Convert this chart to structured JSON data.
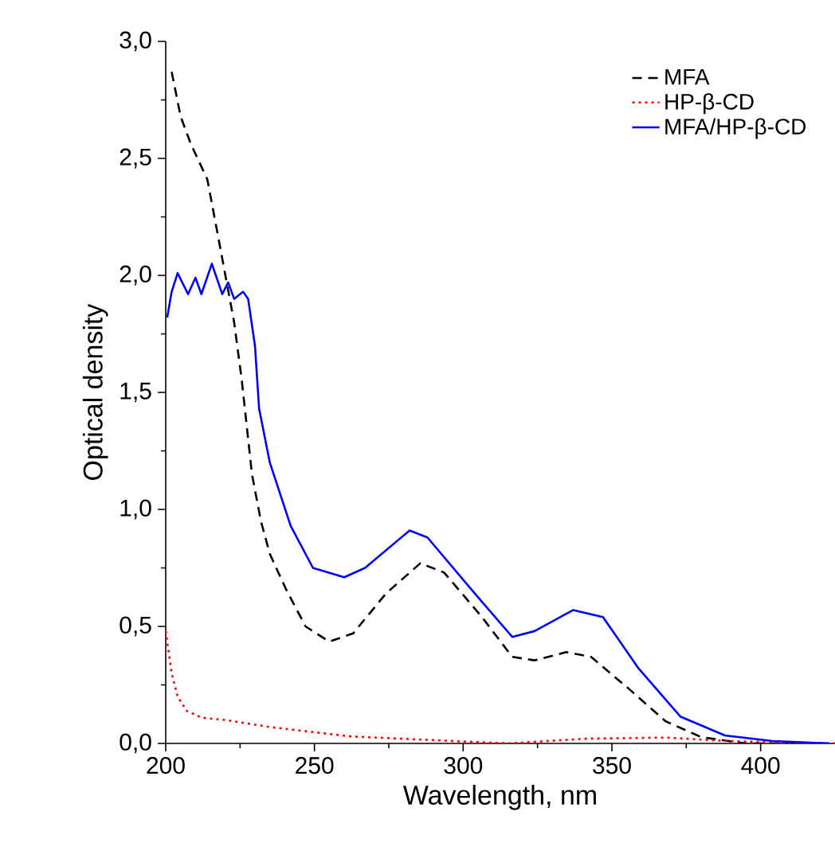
{
  "chart_data": {
    "type": "line",
    "xlabel": "Wavelength, nm",
    "ylabel": "Optical density",
    "xlim": [
      200,
      425
    ],
    "ylim": [
      0,
      3.0
    ],
    "xticks": [
      200,
      250,
      300,
      350,
      400
    ],
    "yticks": [
      {
        "value": 0,
        "label": "0,0"
      },
      {
        "value": 0.5,
        "label": "0,5"
      },
      {
        "value": 1.0,
        "label": "1,0"
      },
      {
        "value": 1.5,
        "label": "1,5"
      },
      {
        "value": 2.0,
        "label": "2,0"
      },
      {
        "value": 2.5,
        "label": "2,5"
      },
      {
        "value": 3.0,
        "label": "3,0"
      }
    ],
    "grid": false,
    "legend": "top right",
    "marker": "none",
    "series": [
      {
        "name": "MFA",
        "color": "#000000",
        "line_style": "dashed",
        "x": [
          202,
          205,
          208.5,
          214,
          218,
          223,
          225.5,
          229,
          232,
          235,
          240.4,
          247,
          255,
          263,
          274,
          285.6,
          293.6,
          306,
          316.5,
          324,
          334.6,
          343,
          356,
          368,
          380,
          395,
          425
        ],
        "values": [
          2.87,
          2.68,
          2.56,
          2.41,
          2.14,
          1.8,
          1.56,
          1.15,
          0.95,
          0.81,
          0.66,
          0.5,
          0.435,
          0.47,
          0.64,
          0.77,
          0.73,
          0.545,
          0.37,
          0.355,
          0.39,
          0.37,
          0.23,
          0.095,
          0.027,
          0.0,
          0.0
        ]
      },
      {
        "name": "HP-β-CD",
        "color": "#ff0000",
        "line_style": "dotted",
        "x": [
          200,
          202,
          204,
          207,
          212,
          220,
          230,
          235,
          262,
          297,
          315,
          341,
          368,
          389,
          425
        ],
        "values": [
          0.48,
          0.3,
          0.2,
          0.14,
          0.11,
          0.1,
          0.08,
          0.07,
          0.03,
          0.01,
          0.0,
          0.02,
          0.025,
          0.01,
          0.0
        ]
      },
      {
        "name": "MFA/HP-β-CD",
        "color": "#0000ff",
        "line_style": "solid",
        "x": [
          200.5,
          202,
          204,
          207.5,
          210,
          212,
          215.5,
          219,
          221,
          223,
          226,
          227.7,
          230,
          231.4,
          235,
          242,
          249.5,
          260,
          267,
          282,
          288,
          302.6,
          316.5,
          324,
          337,
          347,
          359,
          373,
          388,
          404,
          423
        ],
        "values": [
          1.82,
          1.93,
          2.01,
          1.92,
          1.99,
          1.92,
          2.05,
          1.92,
          1.97,
          1.9,
          1.93,
          1.9,
          1.7,
          1.43,
          1.2,
          0.93,
          0.75,
          0.71,
          0.75,
          0.91,
          0.88,
          0.66,
          0.455,
          0.48,
          0.57,
          0.54,
          0.32,
          0.115,
          0.034,
          0.01,
          0.0
        ]
      }
    ]
  }
}
